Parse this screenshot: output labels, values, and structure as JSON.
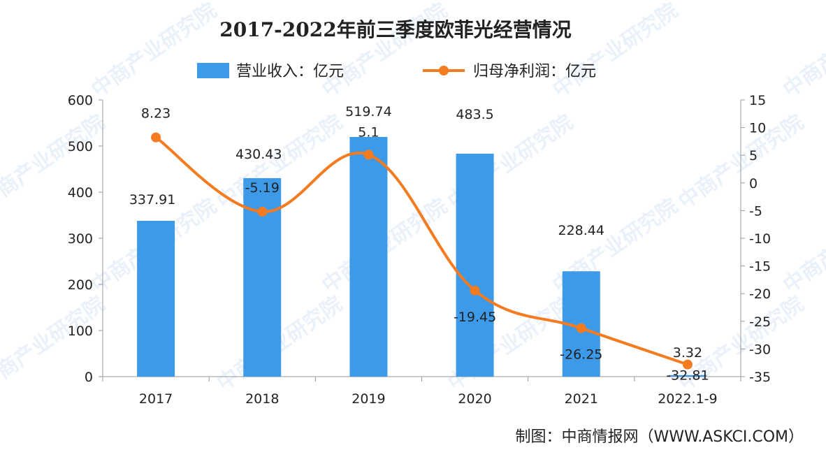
{
  "chart_data": {
    "type": "bar+line",
    "title": "2017-2022年前三季度欧菲光经营情况",
    "categories": [
      "2017",
      "2018",
      "2019",
      "2020",
      "2021",
      "2022.1-9"
    ],
    "series": [
      {
        "name": "营业收入：亿元",
        "type": "bar",
        "axis": "left",
        "values": [
          337.91,
          430.43,
          519.74,
          483.5,
          228.44,
          3.32
        ],
        "labels": [
          "337.91",
          "430.43",
          "519.74",
          "483.5",
          "228.44",
          "3.32"
        ]
      },
      {
        "name": "归母净利润：亿元",
        "type": "line",
        "axis": "right",
        "values": [
          8.23,
          -5.19,
          5.1,
          -19.45,
          -26.25,
          -32.81
        ],
        "labels": [
          "8.23",
          "-5.19",
          "5.1",
          "-19.45",
          "-26.25",
          "-32.81"
        ]
      }
    ],
    "y_left": {
      "min": 0,
      "max": 600,
      "ticks": [
        "0",
        "100",
        "200",
        "300",
        "400",
        "500",
        "600"
      ]
    },
    "y_right": {
      "min": -35,
      "max": 15,
      "ticks": [
        "-35",
        "-30",
        "-25",
        "-20",
        "-15",
        "-10",
        "-5",
        "0",
        "5",
        "10",
        "15"
      ]
    },
    "legend": "top-center",
    "grid": false
  },
  "colors": {
    "bar": "#3d9ae8",
    "line": "#f47b20",
    "text": "#222222",
    "axis": "#999999"
  },
  "source": "制图：中商情报网（WWW.ASKCI.COM）",
  "watermark": "中商产业研究院"
}
